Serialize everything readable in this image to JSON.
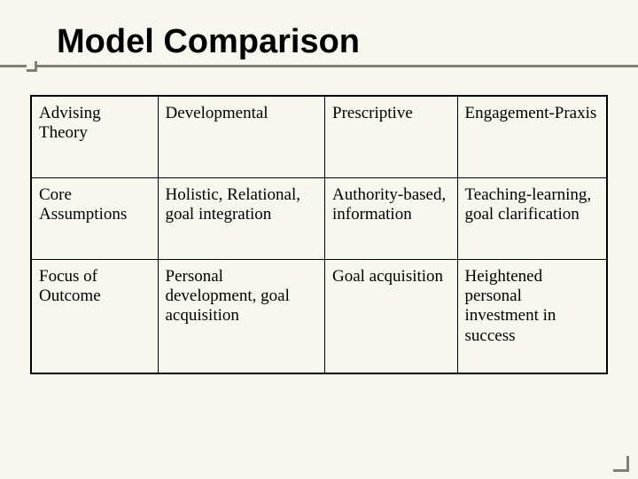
{
  "slide": {
    "title": "Model Comparison",
    "background_color": "#f7f7ef",
    "rule_color": "#808073",
    "title_fontsize": 38,
    "title_font": "Arial",
    "body_font": "Times New Roman",
    "body_fontsize": 19
  },
  "table": {
    "type": "table",
    "border_color": "#000000",
    "columns": [
      "Advising Theory",
      "Developmental",
      "Prescriptive",
      "Engagement-Praxis"
    ],
    "column_widths_pct": [
      22,
      29,
      23,
      26
    ],
    "rows": [
      {
        "label": "Core Assumptions",
        "cells": [
          "Holistic, Relational, goal integration",
          "Authority-based, information",
          "Teaching-learning, goal clarification"
        ]
      },
      {
        "label": "Focus of Outcome",
        "cells": [
          "Personal development, goal acquisition",
          "Goal acquisition",
          "Heightened personal investment in success"
        ]
      }
    ]
  }
}
